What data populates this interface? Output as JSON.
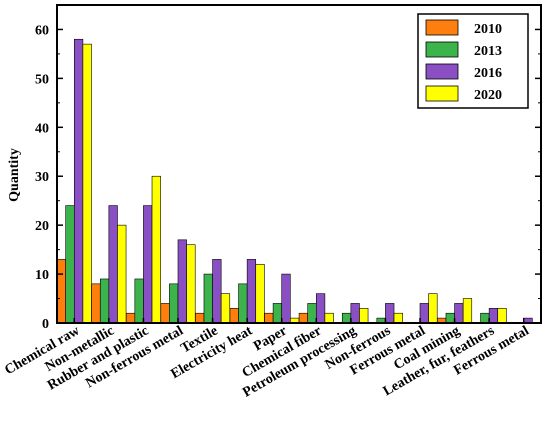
{
  "chart_data": {
    "type": "bar",
    "title": "",
    "xlabel": "",
    "ylabel": "Quantity",
    "ylim": [
      0,
      65
    ],
    "yticks": [
      0,
      10,
      20,
      30,
      40,
      50,
      60
    ],
    "grid": false,
    "legend_position": "top-right",
    "categories": [
      "Chemical raw",
      "Non-metallic",
      "Rubber and plastic",
      "Non-ferrous metal",
      "Textile",
      "Electricity heat",
      "Paper",
      "Chemical fiber",
      "Petroleum processing",
      "Non-ferrous",
      "Ferrous metal",
      "Coal mining",
      "Leather, fur, feathers",
      "Ferrous metal"
    ],
    "series": [
      {
        "name": "2010",
        "color": "#ff7f0e",
        "values": [
          13,
          8,
          2,
          4,
          2,
          3,
          2,
          2,
          0,
          0,
          0,
          1,
          0,
          0
        ]
      },
      {
        "name": "2013",
        "color": "#3cb44b",
        "values": [
          24,
          9,
          9,
          8,
          10,
          8,
          4,
          4,
          2,
          1,
          0,
          2,
          2,
          0
        ]
      },
      {
        "name": "2016",
        "color": "#8a4fc2",
        "values": [
          58,
          24,
          24,
          17,
          13,
          13,
          10,
          6,
          4,
          4,
          4,
          4,
          3,
          1
        ]
      },
      {
        "name": "2020",
        "color": "#ffff00",
        "values": [
          57,
          20,
          30,
          16,
          6,
          12,
          1,
          2,
          3,
          2,
          6,
          5,
          3,
          0
        ]
      }
    ]
  }
}
